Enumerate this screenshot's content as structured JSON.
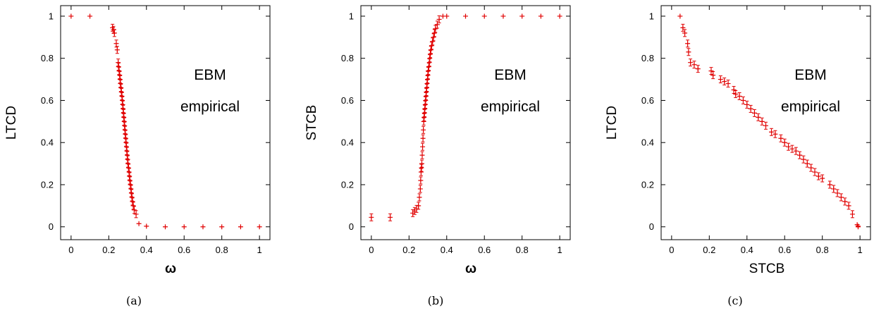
{
  "chart_data": [
    {
      "type": "scatter",
      "panel_label": "(a)",
      "xlabel": "ω",
      "ylabel": "LTCD",
      "annotation": [
        "EBM",
        "empirical"
      ],
      "xlim": [
        0,
        1
      ],
      "ylim": [
        0,
        1
      ],
      "xticks": [
        "0",
        "0.2",
        "0.4",
        "0.6",
        "0.8",
        "1"
      ],
      "yticks": [
        "0",
        "0.2",
        "0.4",
        "0.6",
        "0.8",
        "1"
      ],
      "grid": false,
      "color": "#e00000",
      "marker": "plus",
      "error_bars": true,
      "points": [
        [
          0.0,
          1.0
        ],
        [
          0.1,
          1.0
        ],
        [
          0.22,
          0.945
        ],
        [
          0.225,
          0.935
        ],
        [
          0.23,
          0.92
        ],
        [
          0.24,
          0.87
        ],
        [
          0.245,
          0.84
        ],
        [
          0.25,
          0.78
        ],
        [
          0.252,
          0.76
        ],
        [
          0.255,
          0.74
        ],
        [
          0.258,
          0.72
        ],
        [
          0.26,
          0.7
        ],
        [
          0.262,
          0.68
        ],
        [
          0.265,
          0.66
        ],
        [
          0.267,
          0.64
        ],
        [
          0.27,
          0.62
        ],
        [
          0.272,
          0.6
        ],
        [
          0.274,
          0.58
        ],
        [
          0.276,
          0.56
        ],
        [
          0.278,
          0.54
        ],
        [
          0.28,
          0.52
        ],
        [
          0.282,
          0.5
        ],
        [
          0.284,
          0.48
        ],
        [
          0.286,
          0.46
        ],
        [
          0.288,
          0.44
        ],
        [
          0.29,
          0.42
        ],
        [
          0.292,
          0.4
        ],
        [
          0.294,
          0.38
        ],
        [
          0.296,
          0.36
        ],
        [
          0.298,
          0.34
        ],
        [
          0.3,
          0.32
        ],
        [
          0.302,
          0.3
        ],
        [
          0.305,
          0.28
        ],
        [
          0.308,
          0.26
        ],
        [
          0.31,
          0.24
        ],
        [
          0.312,
          0.22
        ],
        [
          0.315,
          0.2
        ],
        [
          0.318,
          0.18
        ],
        [
          0.32,
          0.16
        ],
        [
          0.323,
          0.14
        ],
        [
          0.326,
          0.12
        ],
        [
          0.33,
          0.1
        ],
        [
          0.335,
          0.08
        ],
        [
          0.345,
          0.06
        ],
        [
          0.36,
          0.015
        ],
        [
          0.4,
          0.003
        ],
        [
          0.5,
          0.0
        ],
        [
          0.6,
          0.0
        ],
        [
          0.7,
          0.0
        ],
        [
          0.8,
          0.0
        ],
        [
          0.9,
          0.0
        ],
        [
          1.0,
          0.0
        ]
      ]
    },
    {
      "type": "scatter",
      "panel_label": "(b)",
      "xlabel": "ω",
      "ylabel": "STCB",
      "annotation": [
        "EBM",
        "empirical"
      ],
      "xlim": [
        0,
        1
      ],
      "ylim": [
        0,
        1
      ],
      "xticks": [
        "0",
        "0.2",
        "0.4",
        "0.6",
        "0.8",
        "1"
      ],
      "yticks": [
        "0",
        "0.2",
        "0.4",
        "0.6",
        "0.8",
        "1"
      ],
      "grid": false,
      "color": "#e00000",
      "marker": "plus",
      "error_bars": true,
      "points": [
        [
          0.0,
          0.045
        ],
        [
          0.1,
          0.045
        ],
        [
          0.22,
          0.065
        ],
        [
          0.23,
          0.075
        ],
        [
          0.24,
          0.085
        ],
        [
          0.25,
          0.1
        ],
        [
          0.255,
          0.14
        ],
        [
          0.26,
          0.18
        ],
        [
          0.262,
          0.22
        ],
        [
          0.264,
          0.26
        ],
        [
          0.266,
          0.28
        ],
        [
          0.268,
          0.3
        ],
        [
          0.27,
          0.34
        ],
        [
          0.272,
          0.38
        ],
        [
          0.274,
          0.42
        ],
        [
          0.276,
          0.46
        ],
        [
          0.278,
          0.5
        ],
        [
          0.28,
          0.52
        ],
        [
          0.282,
          0.54
        ],
        [
          0.284,
          0.56
        ],
        [
          0.286,
          0.58
        ],
        [
          0.288,
          0.6
        ],
        [
          0.29,
          0.62
        ],
        [
          0.292,
          0.64
        ],
        [
          0.294,
          0.66
        ],
        [
          0.296,
          0.68
        ],
        [
          0.298,
          0.7
        ],
        [
          0.3,
          0.72
        ],
        [
          0.302,
          0.74
        ],
        [
          0.305,
          0.76
        ],
        [
          0.308,
          0.78
        ],
        [
          0.31,
          0.8
        ],
        [
          0.313,
          0.82
        ],
        [
          0.316,
          0.84
        ],
        [
          0.32,
          0.86
        ],
        [
          0.325,
          0.88
        ],
        [
          0.33,
          0.9
        ],
        [
          0.335,
          0.92
        ],
        [
          0.34,
          0.94
        ],
        [
          0.35,
          0.96
        ],
        [
          0.36,
          0.985
        ],
        [
          0.38,
          1.0
        ],
        [
          0.4,
          1.0
        ],
        [
          0.5,
          1.0
        ],
        [
          0.6,
          1.0
        ],
        [
          0.7,
          1.0
        ],
        [
          0.8,
          1.0
        ],
        [
          0.9,
          1.0
        ],
        [
          1.0,
          1.0
        ]
      ]
    },
    {
      "type": "scatter",
      "panel_label": "(c)",
      "xlabel": "STCB",
      "ylabel": "LTCD",
      "annotation": [
        "EBM",
        "empirical"
      ],
      "xlim": [
        0,
        1
      ],
      "ylim": [
        0,
        1
      ],
      "xticks": [
        "0",
        "0.2",
        "0.4",
        "0.6",
        "0.8",
        "1"
      ],
      "yticks": [
        "0",
        "0.2",
        "0.4",
        "0.6",
        "0.8",
        "1"
      ],
      "grid": false,
      "color": "#e00000",
      "marker": "plus",
      "error_bars": true,
      "points": [
        [
          0.045,
          1.0
        ],
        [
          0.06,
          0.945
        ],
        [
          0.07,
          0.92
        ],
        [
          0.085,
          0.87
        ],
        [
          0.09,
          0.83
        ],
        [
          0.1,
          0.78
        ],
        [
          0.12,
          0.77
        ],
        [
          0.14,
          0.75
        ],
        [
          0.21,
          0.74
        ],
        [
          0.22,
          0.72
        ],
        [
          0.26,
          0.7
        ],
        [
          0.28,
          0.69
        ],
        [
          0.3,
          0.68
        ],
        [
          0.33,
          0.65
        ],
        [
          0.34,
          0.63
        ],
        [
          0.36,
          0.62
        ],
        [
          0.38,
          0.6
        ],
        [
          0.4,
          0.58
        ],
        [
          0.42,
          0.56
        ],
        [
          0.44,
          0.54
        ],
        [
          0.46,
          0.52
        ],
        [
          0.48,
          0.5
        ],
        [
          0.5,
          0.48
        ],
        [
          0.53,
          0.45
        ],
        [
          0.55,
          0.44
        ],
        [
          0.58,
          0.42
        ],
        [
          0.6,
          0.4
        ],
        [
          0.62,
          0.38
        ],
        [
          0.64,
          0.37
        ],
        [
          0.66,
          0.36
        ],
        [
          0.68,
          0.34
        ],
        [
          0.7,
          0.32
        ],
        [
          0.72,
          0.3
        ],
        [
          0.74,
          0.28
        ],
        [
          0.76,
          0.26
        ],
        [
          0.78,
          0.24
        ],
        [
          0.8,
          0.23
        ],
        [
          0.84,
          0.2
        ],
        [
          0.86,
          0.18
        ],
        [
          0.88,
          0.16
        ],
        [
          0.9,
          0.14
        ],
        [
          0.92,
          0.12
        ],
        [
          0.94,
          0.1
        ],
        [
          0.96,
          0.06
        ],
        [
          0.985,
          0.01
        ],
        [
          0.99,
          0.003
        ],
        [
          0.99,
          0.0
        ]
      ]
    }
  ]
}
